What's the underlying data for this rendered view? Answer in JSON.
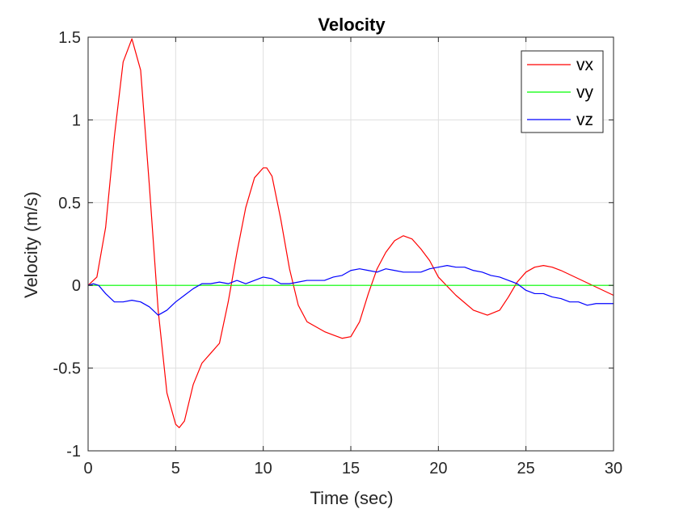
{
  "chart_data": {
    "type": "line",
    "title": "Velocity",
    "xlabel": "Time (sec)",
    "ylabel": "Velocity (m/s)",
    "xlim": [
      0,
      30
    ],
    "ylim": [
      -1,
      1.5
    ],
    "xticks": [
      0,
      5,
      10,
      15,
      20,
      25,
      30
    ],
    "xtick_labels": [
      "0",
      "5",
      "10",
      "15",
      "20",
      "25",
      "30"
    ],
    "yticks": [
      -1,
      -0.5,
      0,
      0.5,
      1,
      1.5
    ],
    "ytick_labels": [
      "-1",
      "-0.5",
      "0",
      "0.5",
      "1",
      "1.5"
    ],
    "grid": true,
    "legend_position": "top-right",
    "series": [
      {
        "name": "vx",
        "color": "#ff0000",
        "x": [
          0,
          0.5,
          1.0,
          1.5,
          2.0,
          2.5,
          3.0,
          3.5,
          4.0,
          4.5,
          5.0,
          5.2,
          5.5,
          6.0,
          6.5,
          7.0,
          7.5,
          8.0,
          8.5,
          9.0,
          9.5,
          10.0,
          10.2,
          10.5,
          11.0,
          11.5,
          12.0,
          12.5,
          13.0,
          13.5,
          14.0,
          14.5,
          15.0,
          15.5,
          16.0,
          16.5,
          17.0,
          17.5,
          18.0,
          18.5,
          19.0,
          19.5,
          20.0,
          21.0,
          22.0,
          22.8,
          23.5,
          24.0,
          24.5,
          25.0,
          25.5,
          26.0,
          26.5,
          27.0,
          28.0,
          29.0,
          30.0
        ],
        "values": [
          0,
          0.05,
          0.35,
          0.9,
          1.35,
          1.49,
          1.3,
          0.6,
          -0.15,
          -0.65,
          -0.84,
          -0.86,
          -0.82,
          -0.6,
          -0.47,
          -0.41,
          -0.35,
          -0.1,
          0.2,
          0.47,
          0.65,
          0.71,
          0.71,
          0.66,
          0.4,
          0.1,
          -0.12,
          -0.22,
          -0.25,
          -0.28,
          -0.3,
          -0.32,
          -0.31,
          -0.22,
          -0.05,
          0.1,
          0.2,
          0.27,
          0.3,
          0.28,
          0.22,
          0.15,
          0.05,
          -0.06,
          -0.15,
          -0.18,
          -0.15,
          -0.07,
          0.02,
          0.08,
          0.11,
          0.12,
          0.11,
          0.09,
          0.04,
          -0.01,
          -0.06
        ]
      },
      {
        "name": "vy",
        "color": "#00ff00",
        "x": [
          0,
          30
        ],
        "values": [
          0,
          0
        ]
      },
      {
        "name": "vz",
        "color": "#0000ff",
        "x": [
          0,
          0.3,
          0.6,
          1.0,
          1.5,
          2.0,
          2.5,
          3.0,
          3.5,
          4.0,
          4.5,
          5.0,
          5.5,
          6.0,
          6.5,
          7.0,
          7.5,
          8.0,
          8.5,
          9.0,
          9.5,
          10.0,
          10.5,
          11.0,
          11.5,
          12.0,
          12.5,
          13.0,
          13.5,
          14.0,
          14.5,
          15.0,
          15.5,
          16.0,
          16.5,
          17.0,
          17.5,
          18.0,
          18.5,
          19.0,
          19.5,
          20.0,
          20.5,
          21.0,
          21.5,
          22.0,
          22.5,
          23.0,
          23.5,
          24.0,
          24.5,
          25.0,
          25.5,
          26.0,
          26.5,
          27.0,
          27.5,
          28.0,
          28.5,
          29.0,
          29.5,
          30.0
        ],
        "values": [
          0,
          0.01,
          0.0,
          -0.05,
          -0.1,
          -0.1,
          -0.09,
          -0.1,
          -0.13,
          -0.18,
          -0.15,
          -0.1,
          -0.06,
          -0.02,
          0.01,
          0.01,
          0.02,
          0.01,
          0.03,
          0.01,
          0.03,
          0.05,
          0.04,
          0.01,
          0.01,
          0.02,
          0.03,
          0.03,
          0.03,
          0.05,
          0.06,
          0.09,
          0.1,
          0.09,
          0.08,
          0.1,
          0.09,
          0.08,
          0.08,
          0.08,
          0.1,
          0.11,
          0.12,
          0.11,
          0.11,
          0.09,
          0.08,
          0.06,
          0.05,
          0.03,
          0.01,
          -0.03,
          -0.05,
          -0.05,
          -0.07,
          -0.08,
          -0.1,
          -0.1,
          -0.12,
          -0.11,
          -0.11,
          -0.11
        ]
      }
    ]
  }
}
